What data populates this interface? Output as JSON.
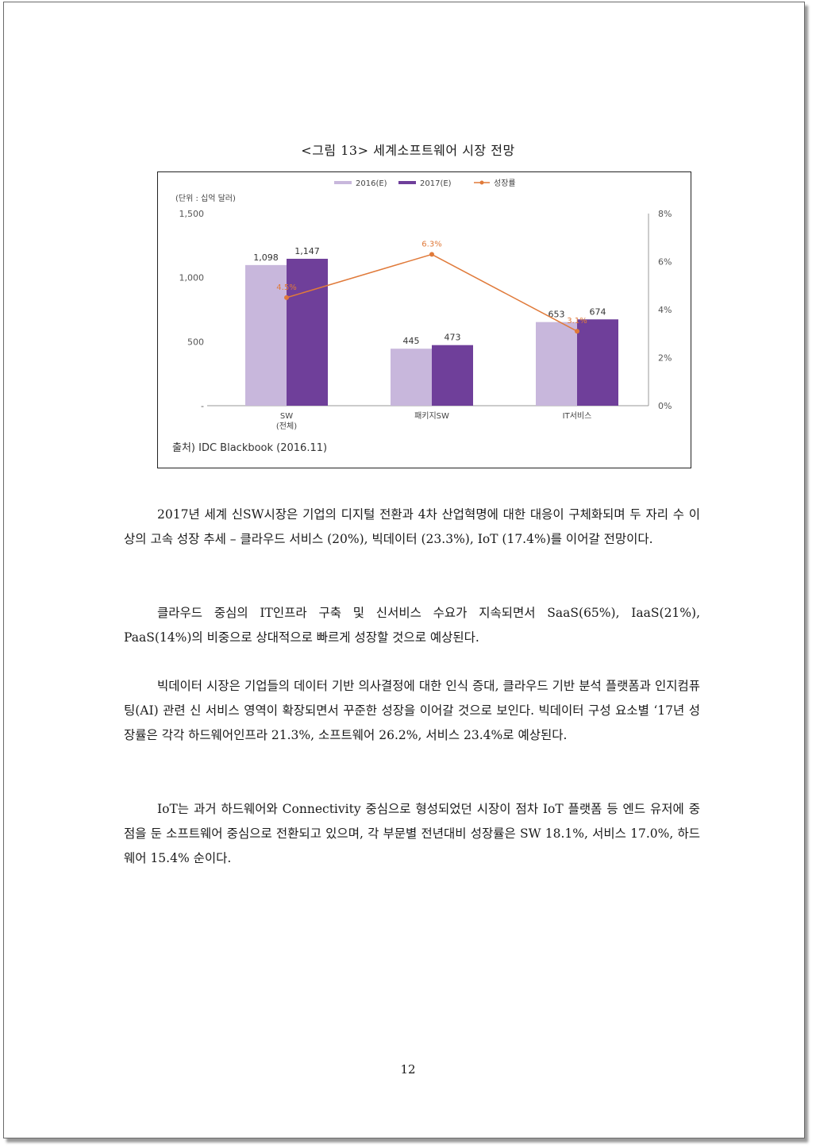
{
  "figure": {
    "title": "<그림 13> 세계소프트웨어 시장 전망",
    "source": "출처) IDC Blackbook (2016.11)"
  },
  "chart_data": {
    "type": "bar",
    "unit_label": "(단위 : 십억 달러)",
    "categories": [
      "SW\n(전체)",
      "패키지SW",
      "IT서비스"
    ],
    "series": [
      {
        "name": "2016(E)",
        "values": [
          1098,
          445,
          653
        ],
        "color": "#c8b7dc"
      },
      {
        "name": "2017(E)",
        "values": [
          1147,
          473,
          674
        ],
        "color": "#6f3f9a"
      }
    ],
    "line_series": {
      "name": "성장률",
      "values": [
        4.5,
        6.3,
        3.1
      ],
      "labels": [
        "4.5%",
        "6.3%",
        "3.1%"
      ],
      "color": "#e07a3a"
    },
    "bar_labels": [
      [
        "1,098",
        "1,147"
      ],
      [
        "445",
        "473"
      ],
      [
        "653",
        "674"
      ]
    ],
    "ylim": [
      0,
      1500
    ],
    "yticks": [
      "-",
      "500",
      "1,000",
      "1,500"
    ],
    "y2lim": [
      0,
      8
    ],
    "y2ticks": [
      "0%",
      "2%",
      "4%",
      "6%",
      "8%"
    ],
    "legend_position": "top"
  },
  "paragraphs": [
    "2017년 세계 신SW시장은 기업의 디지털 전환과 4차 산업혁명에 대한 대응이 구체화되며 두 자리 수 이상의 고속 성장 추세 – 클라우드 서비스 (20%), 빅데이터 (23.3%), IoT (17.4%)를 이어갈 전망이다.",
    "클라우드 중심의 IT인프라 구축 및 신서비스 수요가 지속되면서 SaaS(65%), IaaS(21%), PaaS(14%)의 비중으로 상대적으로 빠르게 성장할 것으로 예상된다.",
    "빅데이터 시장은 기업들의 데이터 기반 의사결정에 대한 인식 증대, 클라우드 기반 분석 플랫폼과 인지컴퓨팅(AI) 관련 신 서비스 영역이 확장되면서 꾸준한 성장을 이어갈 것으로 보인다. 빅데이터 구성 요소별 ‘17년 성장률은 각각 하드웨어인프라 21.3%, 소프트웨어 26.2%, 서비스 23.4%로 예상된다.",
    "IoT는 과거 하드웨어와 Connectivity 중심으로 형성되었던 시장이 점차 IoT 플랫폼 등 엔드 유저에 중점을 둔 소프트웨어 중심으로 전환되고 있으며, 각 부문별 전년대비 성장률은 SW 18.1%, 서비스 17.0%, 하드웨어 15.4% 순이다."
  ],
  "page_number": "12"
}
